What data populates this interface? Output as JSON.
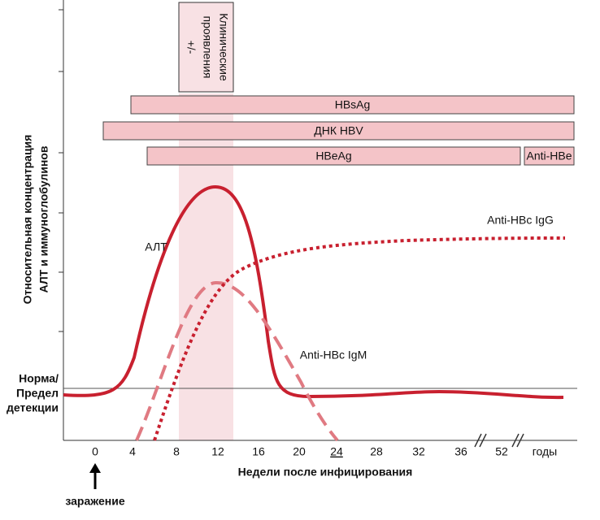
{
  "y_axis_title": [
    "Относительная концентрация",
    "АЛТ и иммуноглобулинов"
  ],
  "norm_label": [
    "Норма/",
    "Предел",
    "детекции"
  ],
  "clinical_box": [
    "Клинические",
    "проявления",
    "+/-"
  ],
  "bars": [
    "HBsAg",
    "ДНК HBV",
    "HBeAg",
    "Anti-HBe"
  ],
  "curves": [
    "АЛТ",
    "Anti-HBc IgG",
    "Anti-HBc IgM"
  ],
  "x_ticks": [
    0,
    4,
    8,
    12,
    16,
    20,
    24,
    28,
    32,
    36,
    52,
    "годы"
  ],
  "x_axis_title": "Недели после инфицирования",
  "infection_label": "заражение"
}
